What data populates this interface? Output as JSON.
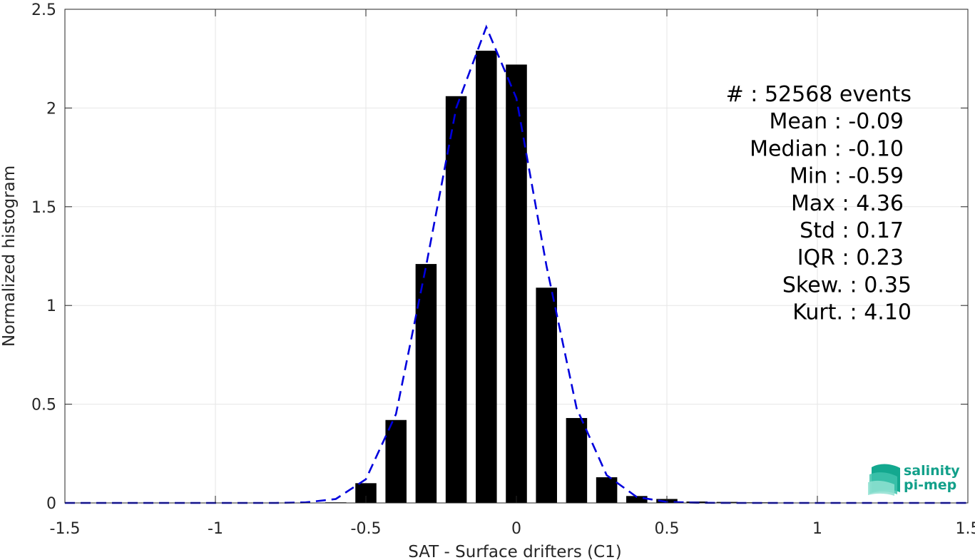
{
  "chart_data": {
    "type": "bar",
    "xlabel": "SAT - Surface drifters (C1)",
    "ylabel": "Normalized histogram",
    "xlim": [
      -1.5,
      1.5
    ],
    "ylim": [
      0,
      2.5
    ],
    "xticks": [
      -1.5,
      -1,
      -0.5,
      0,
      0.5,
      1,
      1.5
    ],
    "xtick_labels": [
      "-1.5",
      "-1",
      "-0.5",
      "0",
      "0.5",
      "1",
      "1.5"
    ],
    "yticks": [
      0,
      0.5,
      1,
      1.5,
      2,
      2.5
    ],
    "ytick_labels": [
      "0",
      "0.5",
      "1",
      "1.5",
      "2",
      "2.5"
    ],
    "grid": true,
    "bar_color": "#000000",
    "bar_width": 0.07,
    "bars": [
      {
        "x": -0.6,
        "y": 0.003
      },
      {
        "x": -0.5,
        "y": 0.1
      },
      {
        "x": -0.4,
        "y": 0.42
      },
      {
        "x": -0.3,
        "y": 1.21
      },
      {
        "x": -0.2,
        "y": 2.06
      },
      {
        "x": -0.1,
        "y": 2.29
      },
      {
        "x": 0.0,
        "y": 2.22
      },
      {
        "x": 0.1,
        "y": 1.09
      },
      {
        "x": 0.2,
        "y": 0.43
      },
      {
        "x": 0.3,
        "y": 0.13
      },
      {
        "x": 0.4,
        "y": 0.035
      },
      {
        "x": 0.5,
        "y": 0.02
      },
      {
        "x": 0.6,
        "y": 0.007
      },
      {
        "x": 0.7,
        "y": 0.005
      },
      {
        "x": 0.8,
        "y": 0.003
      }
    ],
    "fit_curve": {
      "color": "#0000dd",
      "style": "dashed",
      "x": [
        -1.5,
        -1.4,
        -1.3,
        -1.2,
        -1.1,
        -1.0,
        -0.9,
        -0.8,
        -0.7,
        -0.6,
        -0.5,
        -0.4,
        -0.3,
        -0.2,
        -0.1,
        0.0,
        0.1,
        0.2,
        0.3,
        0.4,
        0.5,
        0.6,
        0.7,
        0.8,
        0.9,
        1.0,
        1.1,
        1.2,
        1.3,
        1.4,
        1.5
      ],
      "y": [
        0,
        0,
        0,
        0,
        0,
        0,
        0,
        0,
        0.003,
        0.02,
        0.12,
        0.45,
        1.2,
        2.0,
        2.41,
        2.05,
        1.2,
        0.48,
        0.14,
        0.03,
        0.005,
        0.001,
        0,
        0,
        0,
        0,
        0,
        0,
        0,
        0,
        0
      ]
    },
    "annotations": [
      "#  : 52568 events",
      "Mean : -0.09",
      "Median : -0.10",
      "Min : -0.59",
      "Max : 4.36",
      "Std : 0.17",
      "IQR : 0.23",
      "Skew. : 0.35",
      "Kurt. : 4.10"
    ]
  },
  "logo": {
    "line1": "salinity",
    "line2": "pi-mep"
  }
}
